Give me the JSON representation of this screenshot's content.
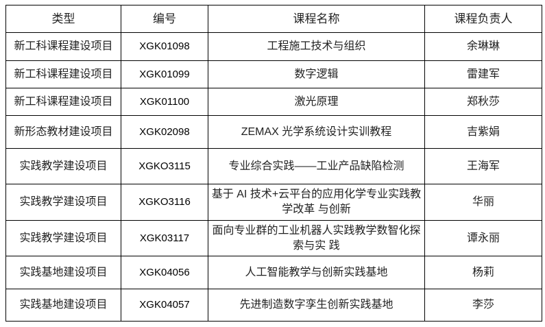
{
  "headers": [
    "类型",
    "编号",
    "课程名称",
    "课程负责人"
  ],
  "rows": [
    {
      "type": "新工科课程建设项目",
      "code": "XGK01098",
      "name": "工程施工技术与组织",
      "lead": "余琳琳"
    },
    {
      "type": "新工科课程建设项目",
      "code": "XGK01099",
      "name": "数字逻辑",
      "lead": "雷建军"
    },
    {
      "type": "新工科课程建设项目",
      "code": "XGK01100",
      "name": "激光原理",
      "lead": "郑秋莎"
    },
    {
      "type": "新形态教材建设项目",
      "code": "XGK02098",
      "name": "ZEMAX 光学系统设计实训教程",
      "lead": "吉紫娟"
    },
    {
      "type": "实践教学建设项目",
      "code": "XGKO3115",
      "name": "专业综合实践——工业产品缺陷检测",
      "lead": "王海军"
    },
    {
      "type": "实践教学建设项目",
      "code": "XGKO3116",
      "name": "基于 AI 技术+云平台的应用化学专业实践教学改革 与创新",
      "lead": "华丽"
    },
    {
      "type": "实践教学建设项目",
      "code": "XGK03117",
      "name": "面向专业群的工业机器人实践教学数智化探索与实 践",
      "lead": "谭永丽"
    },
    {
      "type": "实践基地建设项目",
      "code": "XGK04056",
      "name": "人工智能教学与创新实践基地",
      "lead": "杨莉"
    },
    {
      "type": "实践基地建设项目",
      "code": "XGK04057",
      "name": "先进制造数字孪生创新实践基地",
      "lead": "李莎"
    }
  ]
}
